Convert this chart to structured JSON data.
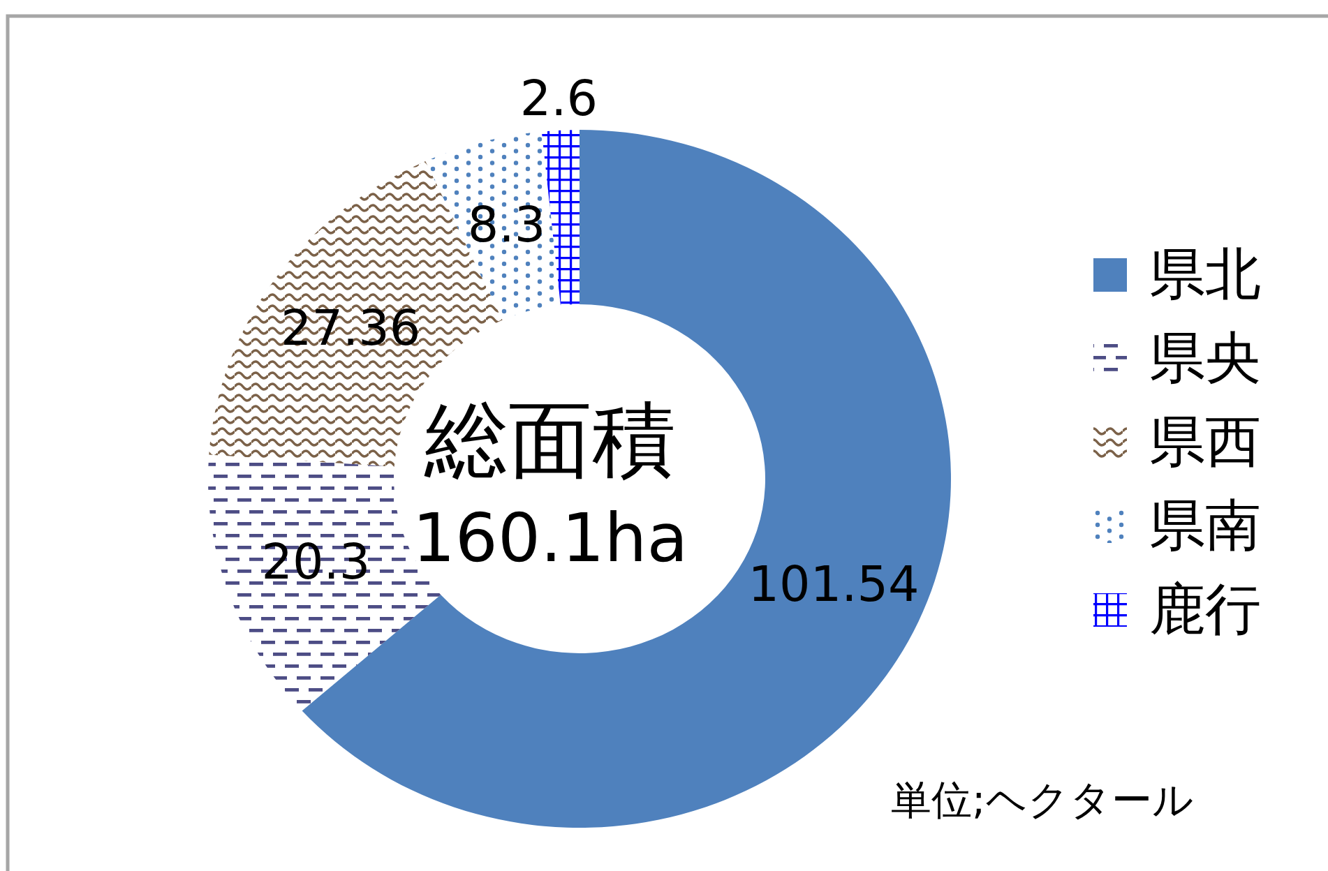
{
  "chart_data": {
    "type": "donut",
    "categories": [
      "県北",
      "県央",
      "県西",
      "県南",
      "鹿行"
    ],
    "values": [
      101.54,
      20.3,
      27.36,
      8.3,
      2.6
    ],
    "colors": [
      "#4f81bd",
      "#4d4d85",
      "#7b6148",
      "#4f81bd",
      "#0000ff"
    ],
    "data_labels": true,
    "legend": "right",
    "annotations": [
      "総面積",
      "160.1ha",
      "単位;ヘクタール"
    ]
  }
}
